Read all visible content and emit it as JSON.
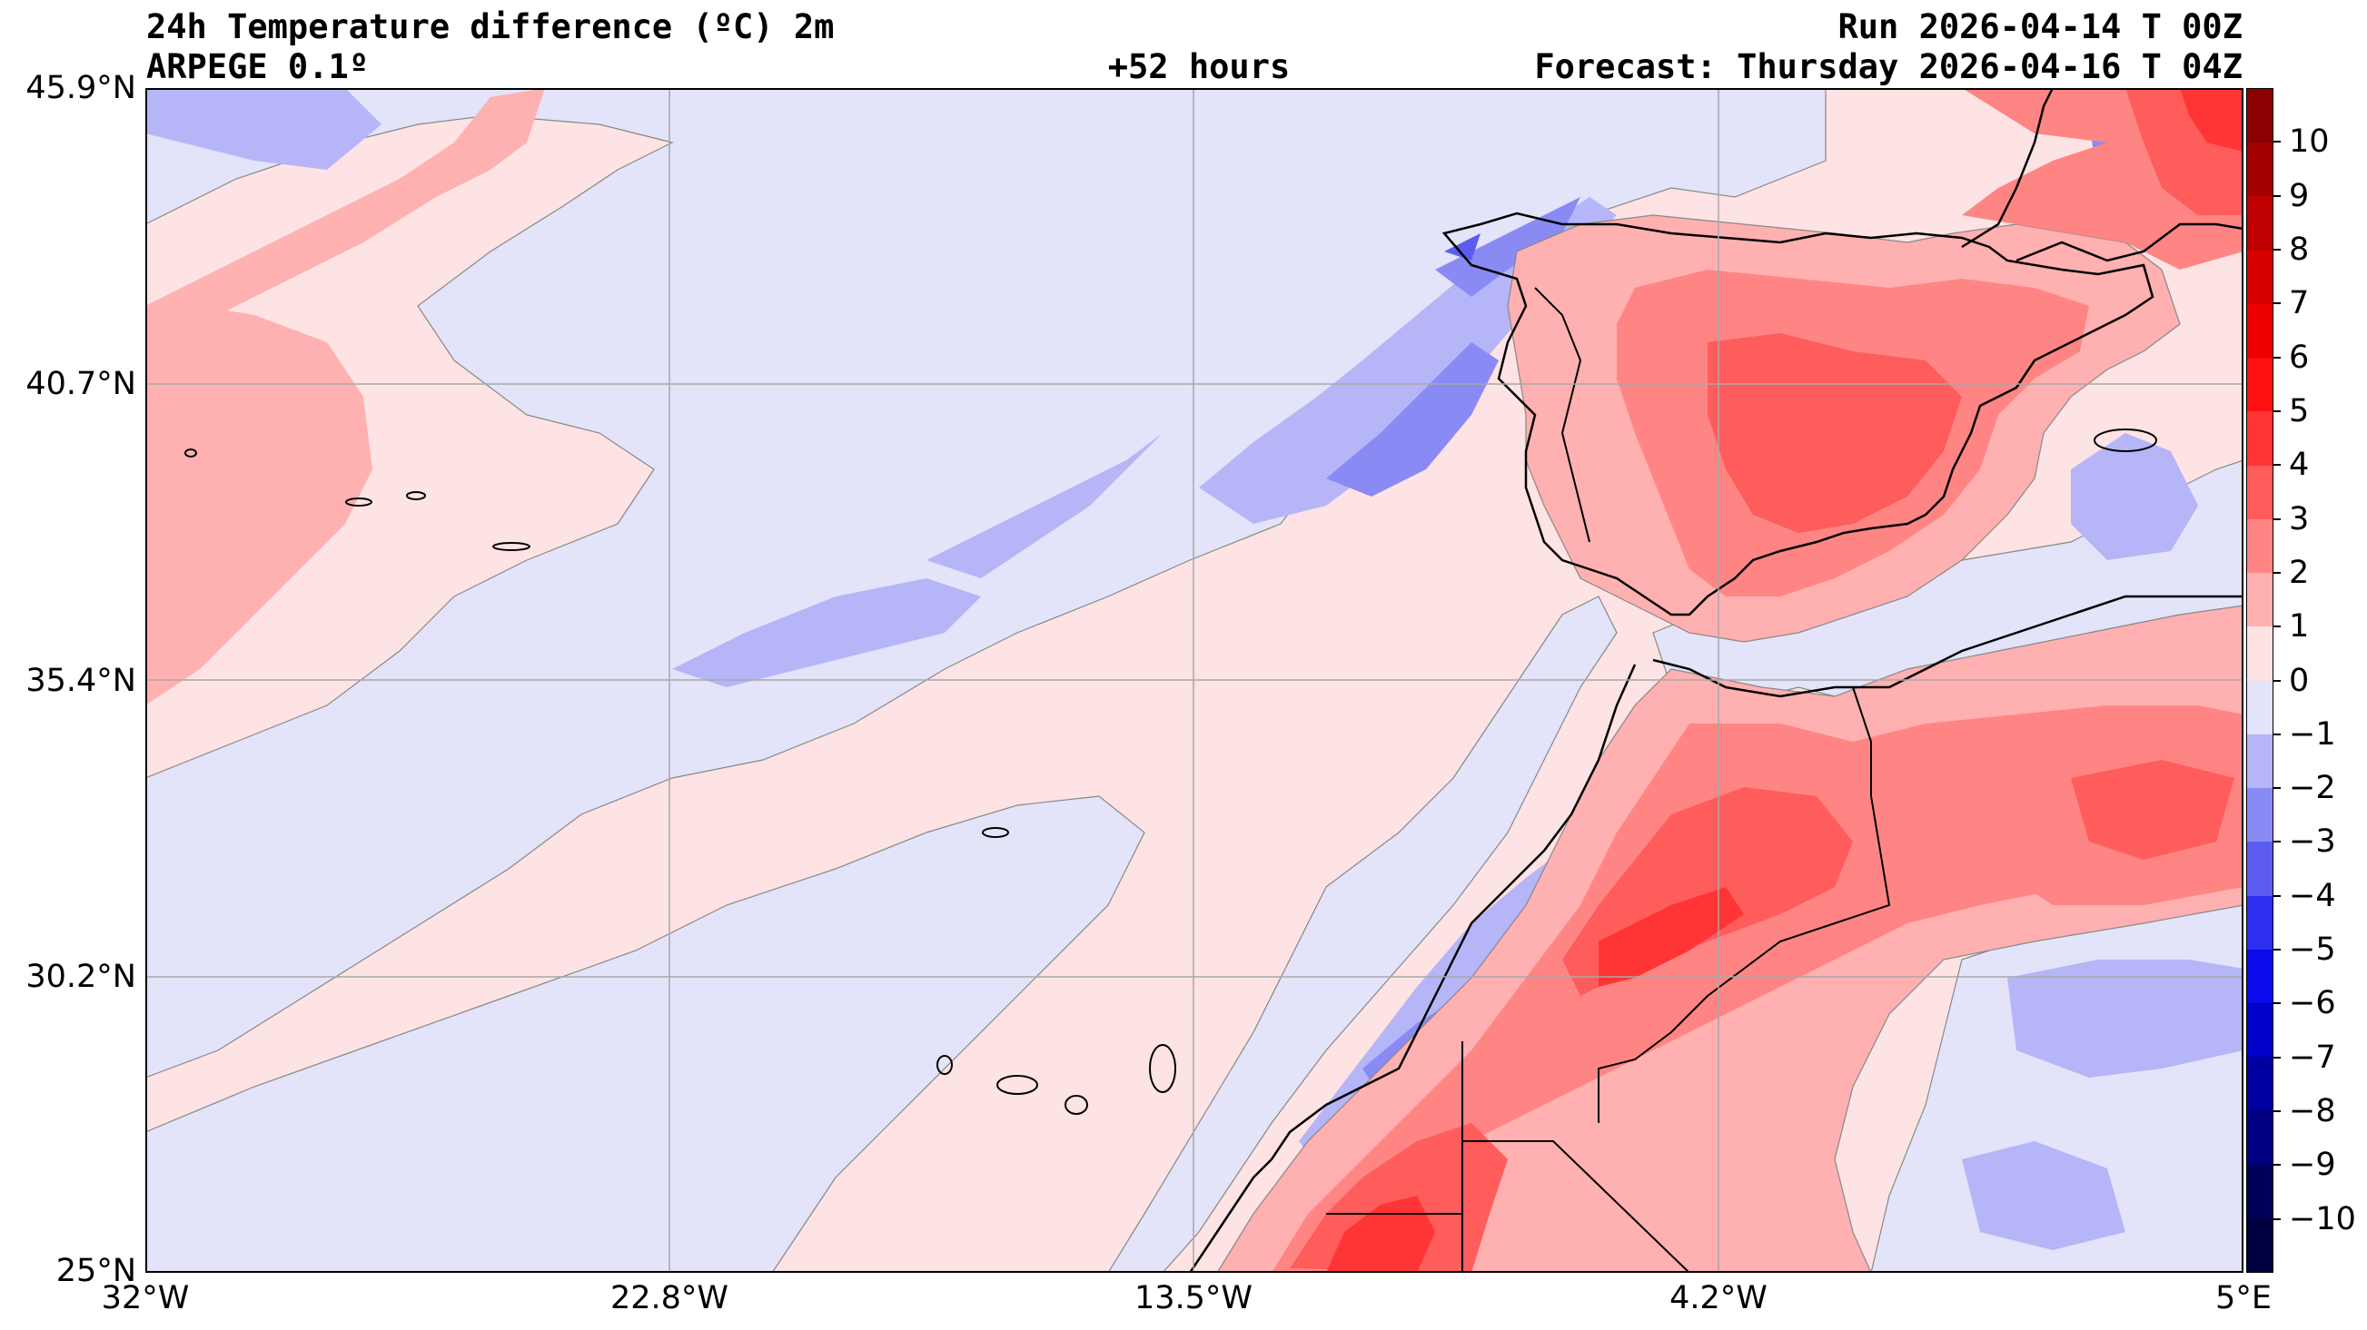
{
  "header": {
    "title": "24h Temperature difference (ºC) 2m",
    "model": "ARPEGE 0.1º",
    "lead_time": "+52 hours",
    "run": "Run 2026-04-14 T 00Z",
    "forecast": "Forecast: Thursday 2026-04-16 T 04Z"
  },
  "axes": {
    "y_labels": [
      "45.9°N",
      "40.7°N",
      "35.4°N",
      "30.2°N",
      "25°N"
    ],
    "x_labels": [
      "32°W",
      "22.8°W",
      "13.5°W",
      "4.2°W",
      "5°E"
    ]
  },
  "colorbar": {
    "labels": [
      "10",
      "9",
      "8",
      "7",
      "6",
      "5",
      "4",
      "3",
      "2",
      "1",
      "0",
      "−1",
      "−2",
      "−3",
      "−4",
      "−5",
      "−6",
      "−7",
      "−8",
      "−9",
      "−10"
    ],
    "colors": [
      "#8b0000",
      "#a30000",
      "#bf0000",
      "#d70000",
      "#ec0000",
      "#ff1010",
      "#ff3535",
      "#ff5c5c",
      "#ff8585",
      "#ffb0b0",
      "#fde3e3",
      "#e3e3fa",
      "#b5b5f8",
      "#8a8af5",
      "#5c5cf2",
      "#2e2ef0",
      "#0a0aeb",
      "#0000c8",
      "#0000a0",
      "#000080",
      "#000058",
      "#000040"
    ]
  },
  "palette": {
    "positive_light": "#fde3e3",
    "positive_1": "#ffb0b0",
    "positive_2": "#ff8585",
    "positive_3": "#ff5c5c",
    "positive_4": "#ff3535",
    "negative_light": "#e3e3fa",
    "negative_1": "#b5b5f8",
    "negative_2": "#8a8af5",
    "negative_3": "#5c5cf2",
    "coast": "#000000",
    "grid": "#a8a8a8"
  }
}
